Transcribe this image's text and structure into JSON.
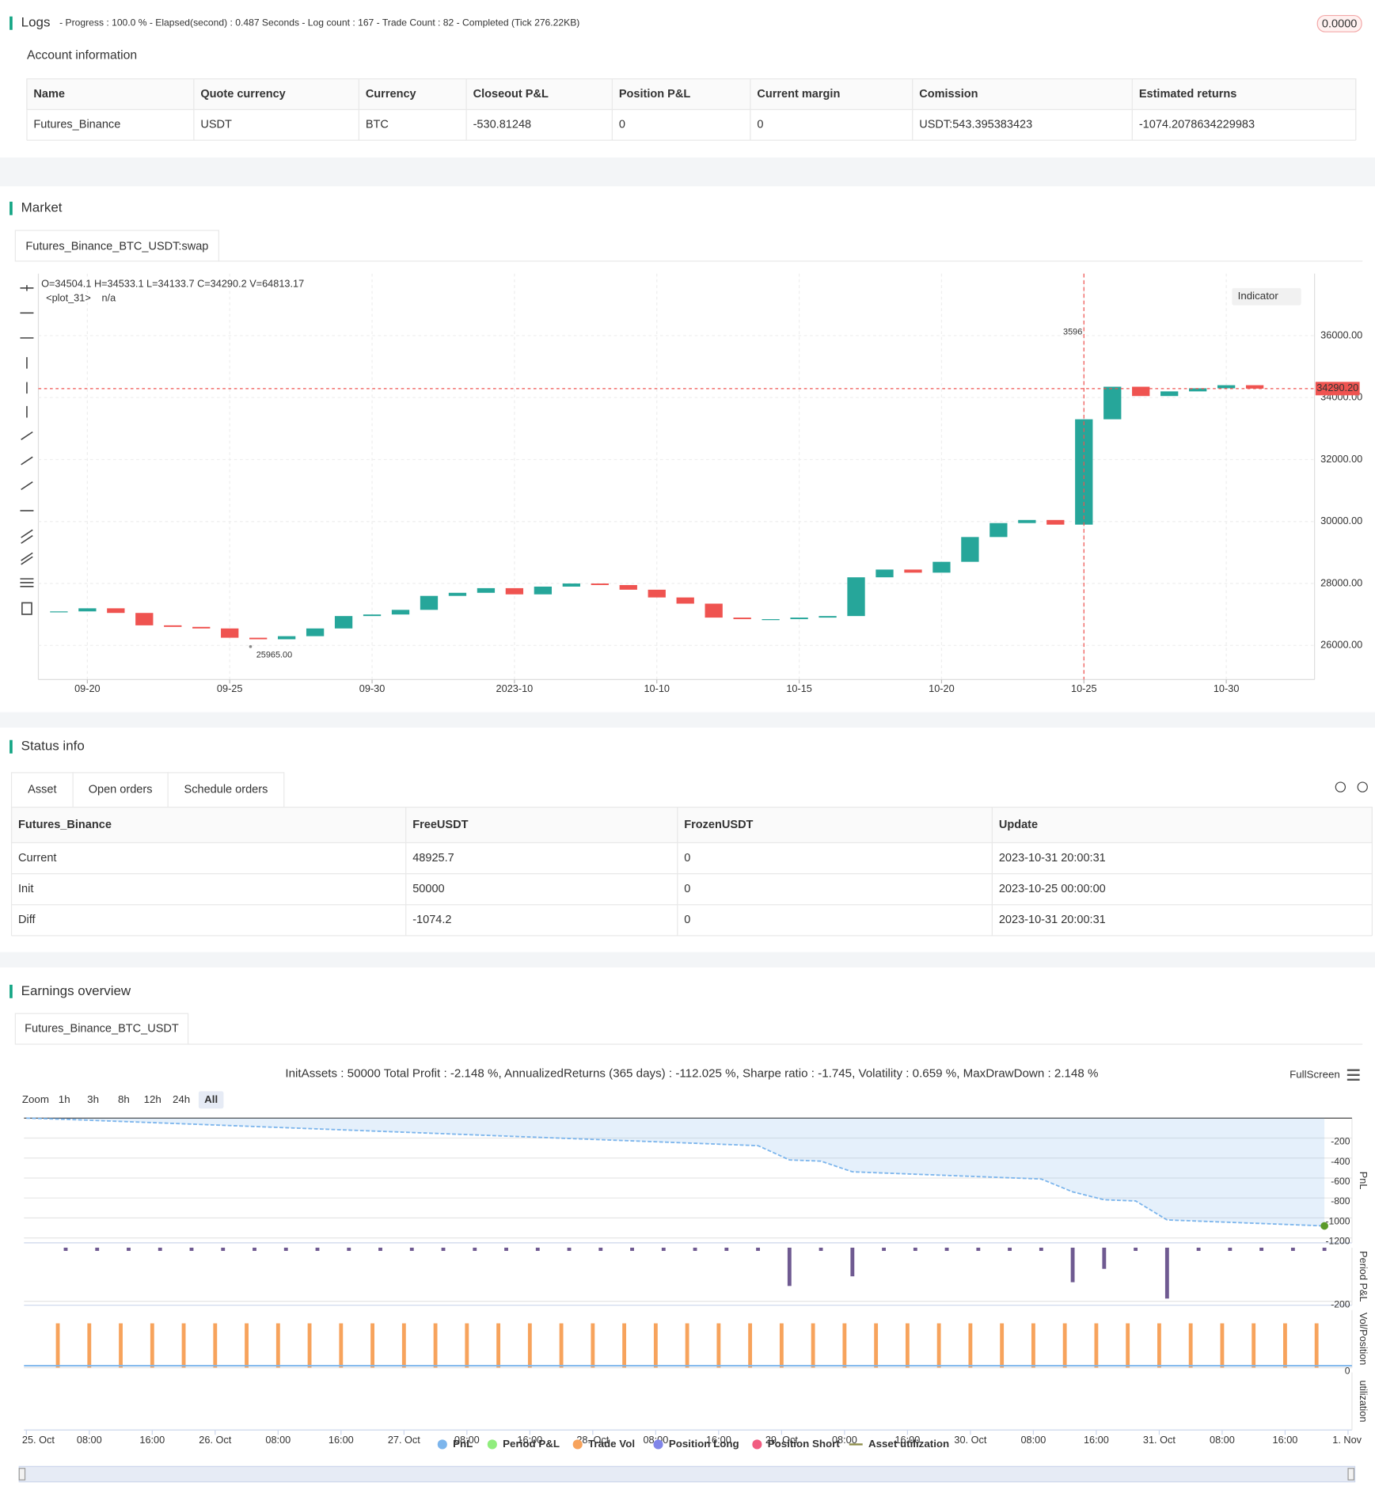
{
  "logs": {
    "title": "Logs",
    "status": "- Progress : 100.0 % - Elapsed(second) : 0.487  Seconds - Log count : 167 - Trade Count : 82 - Completed (Tick 276.22KB)",
    "badge": "0.0000"
  },
  "account": {
    "title": "Account information",
    "columns": [
      "Name",
      "Quote currency",
      "Currency",
      "Closeout P&L",
      "Position P&L",
      "Current margin",
      "Comission",
      "Estimated returns"
    ],
    "rows": [
      [
        "Futures_Binance",
        "USDT",
        "BTC",
        "-530.81248",
        "0",
        "0",
        "USDT:543.395383423",
        "-1074.2078634229983"
      ]
    ]
  },
  "market": {
    "title": "Market",
    "tab": "Futures_Binance_BTC_USDT:swap",
    "ohlc": "O=34504.1 H=34533.1 L=34133.7 C=34290.2 V=64813.17",
    "plot_name": "<plot_31>",
    "plot_value": "n/a",
    "indicator_button": "Indicator",
    "chart_data": {
      "type": "candlestick",
      "up_color": "#26a69a",
      "down_color": "#ef5350",
      "grid": true,
      "x": [
        19,
        20,
        21,
        22,
        23,
        24,
        25,
        26,
        27,
        28,
        29,
        30,
        31,
        32,
        33,
        34,
        35,
        36,
        37,
        38,
        39,
        40,
        41,
        42,
        43,
        44,
        45,
        46,
        47,
        48,
        49,
        50,
        51,
        52,
        53,
        54,
        55,
        56,
        57,
        58,
        59,
        60,
        61
      ],
      "values": [
        27100,
        27200,
        27050,
        26650,
        26600,
        26550,
        26250,
        26200,
        26300,
        26550,
        26950,
        27000,
        27150,
        27600,
        27700,
        27850,
        27650,
        27900,
        28000,
        27950,
        27800,
        27550,
        27350,
        26900,
        26850,
        26850,
        26900,
        26950,
        28200,
        28450,
        28350,
        28700,
        29500,
        29950,
        30050,
        29900,
        33300,
        34350,
        34050,
        34200,
        34300,
        34400,
        34290.2
      ],
      "xlim": [
        18.28,
        63.1
      ],
      "xticks": [
        {
          "value": 20,
          "label": "09-20"
        },
        {
          "value": 25,
          "label": "09-25"
        },
        {
          "value": 30,
          "label": "09-30"
        },
        {
          "value": 35,
          "label": "2023-10"
        },
        {
          "value": 40,
          "label": "10-10"
        },
        {
          "value": 45,
          "label": "10-15"
        },
        {
          "value": 50,
          "label": "10-20"
        },
        {
          "value": 55,
          "label": "10-25"
        },
        {
          "value": 60,
          "label": "10-30"
        }
      ],
      "ylim": [
        24900,
        38000
      ],
      "yticks": [
        {
          "value": 26000,
          "label": "26000.00"
        },
        {
          "value": 28000,
          "label": "28000.00"
        },
        {
          "value": 30000,
          "label": "30000.00"
        },
        {
          "value": 32000,
          "label": "32000.00"
        },
        {
          "value": 34000,
          "label": "34000.00"
        },
        {
          "value": 36000,
          "label": "36000.00"
        }
      ],
      "last_price": {
        "value": 34290.2,
        "label": "34290.20"
      },
      "low_marker": {
        "value": 25965,
        "label": "25965.00"
      },
      "high_marker": "3596"
    }
  },
  "status": {
    "title": "Status info",
    "tabs": [
      "Asset",
      "Open orders",
      "Schedule orders"
    ],
    "columns": [
      "Futures_Binance",
      "FreeUSDT",
      "FrozenUSDT",
      "Update"
    ],
    "rows": [
      [
        "Current",
        "48925.7",
        "0",
        "2023-10-31 20:00:31"
      ],
      [
        "Init",
        "50000",
        "0",
        "2023-10-25 00:00:00"
      ],
      [
        "Diff",
        "-1074.2",
        "0",
        "2023-10-31 20:00:31"
      ]
    ]
  },
  "earnings": {
    "title": "Earnings overview",
    "tab": "Futures_Binance_BTC_USDT",
    "summary": "InitAssets : 50000 Total Profit : -2.148 %, AnnualizedReturns (365 days) : -112.025 %, Sharpe ratio : -1.745, Volatility : 0.659 %, MaxDrawDown : 2.148 %",
    "zoom_label": "Zoom",
    "zoom_buttons": [
      "1h",
      "3h",
      "8h",
      "12h",
      "24h",
      "All"
    ],
    "fullscreen": "FullScreen",
    "chart_data": {
      "type": "multi-panel",
      "xlim": [
        -0.3,
        168.5
      ],
      "xticks": [
        {
          "value": 0,
          "label": "25. Oct"
        },
        {
          "value": 8,
          "label": "08:00"
        },
        {
          "value": 16,
          "label": "16:00"
        },
        {
          "value": 24,
          "label": "26. Oct"
        },
        {
          "value": 32,
          "label": "08:00"
        },
        {
          "value": 40,
          "label": "16:00"
        },
        {
          "value": 48,
          "label": "27. Oct"
        },
        {
          "value": 56,
          "label": "08:00"
        },
        {
          "value": 64,
          "label": "16:00"
        },
        {
          "value": 72,
          "label": "28. Oct"
        },
        {
          "value": 80,
          "label": "08:00"
        },
        {
          "value": 88,
          "label": "16:00"
        },
        {
          "value": 96,
          "label": "29. Oct"
        },
        {
          "value": 104,
          "label": "08:00"
        },
        {
          "value": 112,
          "label": "16:00"
        },
        {
          "value": 120,
          "label": "30. Oct"
        },
        {
          "value": 128,
          "label": "08:00"
        },
        {
          "value": 136,
          "label": "16:00"
        },
        {
          "value": 144,
          "label": "31. Oct"
        },
        {
          "value": 152,
          "label": "08:00"
        },
        {
          "value": 160,
          "label": "16:00"
        },
        {
          "value": 168,
          "label": "1. Nov"
        }
      ],
      "panels": [
        {
          "title": "PnL",
          "ylim": [
            -1250,
            0
          ],
          "yticks": [
            -200,
            -400,
            -600,
            -800,
            -1000,
            -1200
          ]
        },
        {
          "title": "Period P&L",
          "ylim": [
            -215,
            0
          ],
          "yticks": [
            -200
          ]
        },
        {
          "title": "Vol/Position",
          "ylim": [
            0,
            1.3
          ],
          "yticks": [
            0
          ]
        },
        {
          "title": "utilization"
        }
      ],
      "series": [
        {
          "name": "PnL",
          "color": "#7cb5ec",
          "panel": 0,
          "x": [
            0,
            5,
            9,
            13,
            17,
            21,
            25,
            29,
            33,
            37,
            41,
            45,
            49,
            53,
            57,
            61,
            65,
            69,
            73,
            77,
            81,
            85,
            89,
            93,
            97,
            101,
            105,
            109,
            113,
            117,
            121,
            125,
            129,
            133,
            137,
            141,
            145,
            149,
            153,
            157,
            161,
            165
          ],
          "values": [
            0,
            -12,
            -24,
            -36,
            -48,
            -60,
            -72,
            -84,
            -96,
            -108,
            -120,
            -132,
            -144,
            -156,
            -168,
            -180,
            -192,
            -204,
            -216,
            -228,
            -240,
            -252,
            -264,
            -276,
            -419,
            -431,
            -538,
            -550,
            -562,
            -574,
            -586,
            -598,
            -610,
            -739,
            -818,
            -830,
            -1020,
            -1032,
            -1044,
            -1056,
            -1068,
            -1080
          ]
        },
        {
          "name": "Period P&L",
          "color": "#90ed7d",
          "bar_color": "#6f5a91",
          "panel": 1,
          "x": [
            5,
            9,
            13,
            17,
            21,
            25,
            29,
            33,
            37,
            41,
            45,
            49,
            53,
            57,
            61,
            65,
            69,
            73,
            77,
            81,
            85,
            89,
            93,
            97,
            101,
            105,
            109,
            113,
            117,
            121,
            125,
            129,
            133,
            137,
            141,
            145,
            149,
            153,
            157,
            161,
            165
          ],
          "values": [
            -12,
            -12,
            -12,
            -12,
            -12,
            -12,
            -12,
            -12,
            -12,
            -12,
            -12,
            -12,
            -12,
            -12,
            -12,
            -12,
            -12,
            -12,
            -12,
            -12,
            -12,
            -12,
            -12,
            -143,
            -12,
            -107,
            -12,
            -12,
            -12,
            -12,
            -12,
            -12,
            -129,
            -79,
            -12,
            -190,
            -12,
            -12,
            -12,
            -12,
            -12
          ]
        },
        {
          "name": "Trade Vol",
          "color": "#f7a35c",
          "panel": 2,
          "x": [
            4,
            8,
            12,
            16,
            20,
            24,
            28,
            32,
            36,
            40,
            44,
            48,
            52,
            56,
            60,
            64,
            68,
            72,
            76,
            80,
            84,
            88,
            92,
            96,
            100,
            104,
            108,
            112,
            116,
            120,
            124,
            128,
            132,
            136,
            140,
            144,
            148,
            152,
            156,
            160,
            164
          ],
          "values": [
            1,
            1,
            1,
            1,
            1,
            1,
            1,
            1,
            1,
            1,
            1,
            1,
            1,
            1,
            1,
            1,
            1,
            1,
            1,
            1,
            1,
            1,
            1,
            1,
            1,
            1,
            1,
            1,
            1,
            1,
            1,
            1,
            1,
            1,
            1,
            1,
            1,
            1,
            1,
            1,
            1
          ]
        },
        {
          "name": "Position Long",
          "color": "#8085e9"
        },
        {
          "name": "Position Short",
          "color": "#f15c80"
        },
        {
          "name": "Asset utilization",
          "color": "#8d8d4a"
        }
      ]
    }
  }
}
